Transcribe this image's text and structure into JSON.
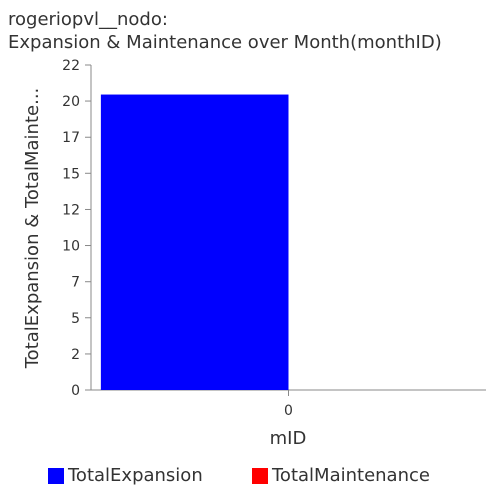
{
  "chart_data": {
    "type": "bar",
    "title": [
      "rogeriopvl__nodo:",
      "Expansion & Maintenance over Month(monthID)"
    ],
    "xlabel": "mID",
    "ylabel": "TotalExpansion & TotalMainte...",
    "categories": [
      "0"
    ],
    "series": [
      {
        "name": "TotalExpansion",
        "color": "#0000ff",
        "values": [
          20
        ]
      },
      {
        "name": "TotalMaintenance",
        "color": "#ff0000",
        "values": [
          0
        ]
      }
    ],
    "ylim": [
      0,
      22
    ],
    "yticks": [
      "0",
      "2",
      "5",
      "7",
      "10",
      "12",
      "15",
      "17",
      "20",
      "22"
    ],
    "ytick_values": [
      0,
      2.44,
      4.89,
      7.33,
      9.78,
      12.22,
      14.67,
      17.11,
      19.56,
      22
    ],
    "grid": false,
    "legend_position": "bottom"
  }
}
